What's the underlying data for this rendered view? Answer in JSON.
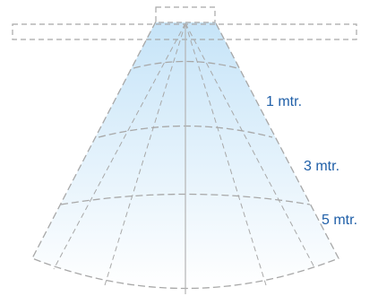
{
  "diagram": {
    "labels": {
      "one_meter": "1 mtr.",
      "three_meter": "3 mtr.",
      "five_meter": "5 mtr."
    },
    "colors": {
      "beam_top": "#c6e4f8",
      "beam_bottom": "#ffffff",
      "dashed_outline": "#a8a8a8",
      "center_axis": "#b4b4b4",
      "label_text": "#1f5fa8"
    }
  }
}
